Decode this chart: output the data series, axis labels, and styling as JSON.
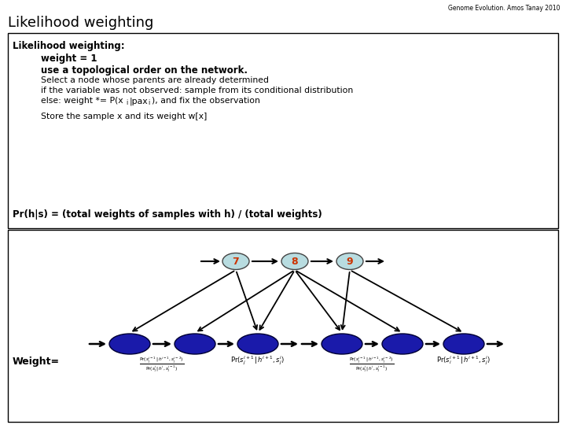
{
  "title": "Likelihood weighting",
  "subtitle": "Genome Evolution. Amos Tanay 2010",
  "top_node_labels": [
    "7",
    "8",
    "9"
  ],
  "top_node_color": "#b8dce0",
  "top_node_text_color": "#cc3300",
  "bottom_node_color": "#1a1aaa",
  "background_color": "#ffffff",
  "title_fontsize": 13,
  "subtitle_fontsize": 5.5,
  "box1_bold_line1": "Likelihood weighting:",
  "box1_bold_line2": "weight = 1",
  "box1_bold_line3": "use a topological order on the network.",
  "box1_normal_line4": "Select a node whose parents are already determined",
  "box1_normal_line5": "if the variable was not observed: sample from its conditional distribution",
  "box1_normal_line6": "else: weight *= P(xi|paxi), and fix the observation",
  "box1_normal_line7": "Store the sample x and its weight w[x]",
  "box1_pr_line": "Pr(h|s) = (total weights of samples with h) / (total weights)",
  "weight_label": "Weight="
}
